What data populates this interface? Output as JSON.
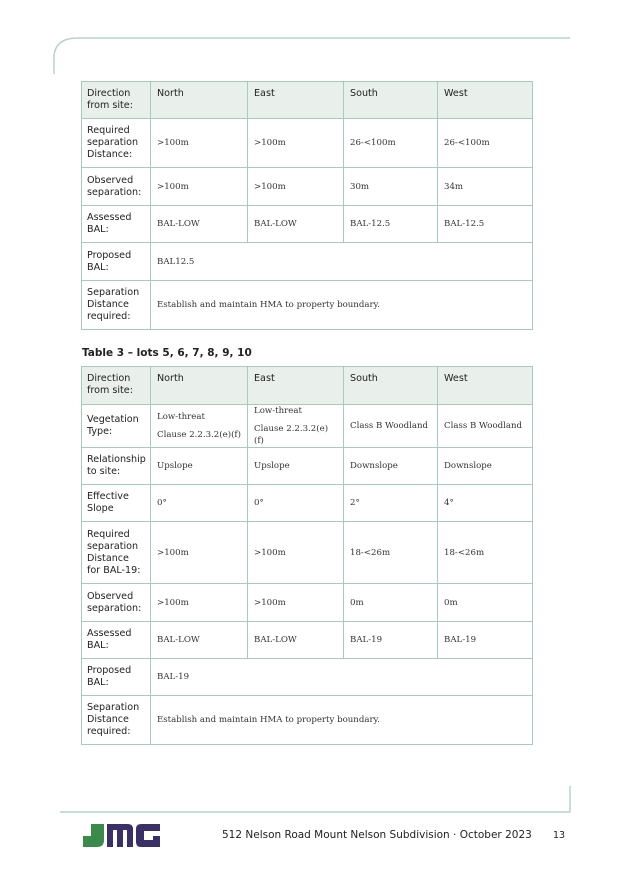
{
  "table1": {
    "rows": [
      {
        "label": "Direction from site:",
        "cells": [
          "North",
          "East",
          "South",
          "West"
        ],
        "header": true
      },
      {
        "label": "Required separation Distance:",
        "cells": [
          ">100m",
          ">100m",
          "26-<100m",
          "26-<100m"
        ]
      },
      {
        "label": "Observed separation:",
        "cells": [
          ">100m",
          ">100m",
          "30m",
          "34m"
        ]
      },
      {
        "label": "Assessed BAL:",
        "cells": [
          "BAL-LOW",
          "BAL-LOW",
          "BAL-12.5",
          "BAL-12.5"
        ]
      },
      {
        "label": "Proposed BAL:",
        "cells": [
          "BAL12.5"
        ]
      },
      {
        "label": "Separation Distance required:",
        "cells": [
          "Establish and maintain HMA to property boundary."
        ]
      }
    ]
  },
  "table3": {
    "caption": "Table 3 – lots 5, 6, 7, 8, 9, 10",
    "rows": [
      {
        "label": "Direction from site:",
        "cells": [
          "North",
          "East",
          "South",
          "West"
        ],
        "header": true
      },
      {
        "label": "Vegetation Type:",
        "cells": [
          "Low-threat|Clause 2.2.3.2(e)(f)",
          "Low-threat|Clause 2.2.3.2(e)(f)",
          "Class B Woodland",
          "Class B Woodland"
        ]
      },
      {
        "label": "Relationship to site:",
        "cells": [
          "Upslope",
          "Upslope",
          "Downslope",
          "Downslope"
        ]
      },
      {
        "label": "Effective Slope",
        "cells": [
          "0°",
          "0°",
          "2°",
          "4°"
        ]
      },
      {
        "label": "Required separation Distance for BAL-19:",
        "cells": [
          ">100m",
          ">100m",
          "18-<26m",
          "18-<26m"
        ]
      },
      {
        "label": "Observed separation:",
        "cells": [
          ">100m",
          ">100m",
          "0m",
          "0m"
        ]
      },
      {
        "label": "Assessed BAL:",
        "cells": [
          "BAL-LOW",
          "BAL-LOW",
          "BAL-19",
          "BAL-19"
        ]
      },
      {
        "label": "Proposed BAL:",
        "cells": [
          "BAL-19"
        ]
      },
      {
        "label": "Separation Distance required:",
        "cells": [
          "Establish and maintain HMA to property boundary."
        ]
      }
    ]
  },
  "footer": {
    "logo_text": "JMG",
    "text": "512 Nelson Road Mount Nelson Subdivision · October 2023",
    "page_number": "13"
  },
  "colors": {
    "accent": "#a9c9bd",
    "header_bg": "#e9efea",
    "logo_green": "#3a8a4a",
    "logo_navy": "#3a2f66"
  }
}
